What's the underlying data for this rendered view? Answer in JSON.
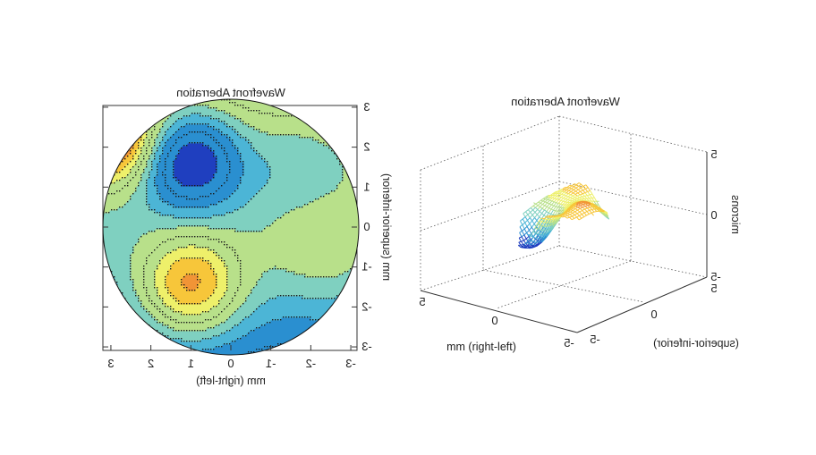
{
  "chart_data": [
    {
      "type": "contour",
      "title": "Wavefront Aberration",
      "xlabel": "mm (right-left)",
      "ylabel": "mm (superior-inferior)",
      "x_ticks": [
        "3",
        "2",
        "1",
        "0",
        "-1",
        "-2",
        "-3"
      ],
      "y_ticks": [
        "3",
        "2",
        "1",
        "0",
        "-1",
        "-2",
        "-3"
      ],
      "xlim": [
        3.2,
        -3.2
      ],
      "ylim": [
        -3.2,
        3.2
      ],
      "aperture_radius_mm": 3.2,
      "contour_levels": 12,
      "features": [
        {
          "kind": "minimum",
          "x": 1.0,
          "y": 1.7,
          "color": "#2a8fd0"
        },
        {
          "kind": "maximum",
          "x": 1.0,
          "y": -1.5,
          "color": "#e64a1e"
        },
        {
          "kind": "maximum",
          "x": 3.0,
          "y": 2.2,
          "color": "#d93a1a"
        }
      ],
      "colormap": [
        "#1f3fbf",
        "#2a8fd0",
        "#4cb5d6",
        "#7fd0c0",
        "#b8e08a",
        "#eef06a",
        "#f7c63a",
        "#f19436",
        "#e64a1e"
      ],
      "mirrored": true
    },
    {
      "type": "surface3d",
      "title": "Wavefront Aberration",
      "xlabel": "mm (right-left)",
      "ylabel": "(superior-inferior)",
      "zlabel": "microns",
      "x_ticks": [
        "5",
        "0",
        "-5"
      ],
      "y_ticks": [
        "5",
        "0",
        "-5"
      ],
      "z_ticks": [
        "5",
        "0",
        "-5"
      ],
      "xlim": [
        -5,
        5
      ],
      "ylim": [
        -5,
        5
      ],
      "zlim": [
        -5,
        5
      ],
      "grid": true,
      "mirrored": true
    }
  ]
}
